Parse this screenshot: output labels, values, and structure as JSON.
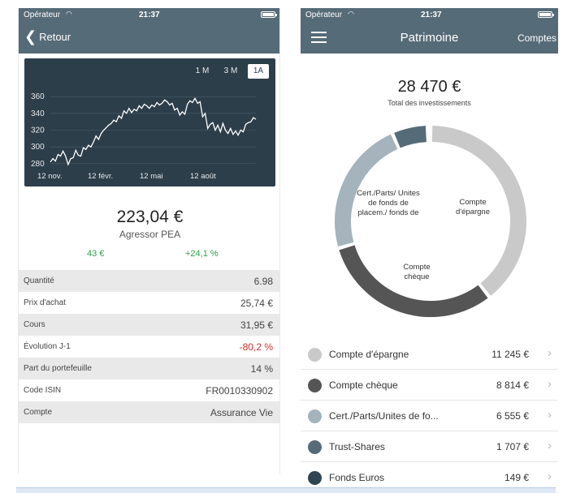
{
  "colors": {
    "navbar": "#566b78",
    "chart_bg": "#2c3e4a",
    "positive": "#2ea14a",
    "negative": "#d0312d"
  },
  "left": {
    "status": {
      "carrier": "Opérateur",
      "time": "21:37"
    },
    "nav": {
      "back_label": "Retour"
    },
    "chart": {
      "ranges": [
        "1 M",
        "3 M",
        "1A"
      ],
      "active_range": "1A",
      "chart_data": {
        "type": "line",
        "title": "",
        "xlabel": "",
        "ylabel": "",
        "y_ticks": [
          "360",
          "340",
          "320",
          "300",
          "280"
        ],
        "x_ticks": [
          "12 nov.",
          "12 févr.",
          "12 mai",
          "12 août"
        ],
        "ylim": [
          275,
          365
        ],
        "grid": true,
        "series": [
          {
            "values": [
              282,
              286,
              283,
              291,
              289,
              295,
              289,
              279,
              286,
              287,
              296,
              290,
              289,
              299,
              297,
              302,
              300,
              306,
              313,
              309,
              316,
              320,
              323,
              326,
              328,
              332,
              330,
              337,
              334,
              343,
              340,
              346,
              341,
              345,
              343,
              349,
              346,
              351,
              349,
              346,
              350,
              348,
              353,
              350,
              352,
              356,
              354,
              350,
              352,
              344,
              346,
              338,
              342,
              339,
              351,
              355,
              353,
              358,
              352,
              354,
              336,
              340,
              322,
              327,
              329,
              320,
              326,
              318,
              328,
              320,
              316,
              322,
              315,
              319,
              314,
              320,
              318,
              327,
              329,
              330,
              335,
              333
            ]
          }
        ]
      }
    },
    "price": "223,04 €",
    "fund_name": "Agressor PEA",
    "gain_amount": "43 €",
    "gain_percent": "+24,1 %",
    "rows": [
      {
        "label": "Quantité",
        "value": "6.98"
      },
      {
        "label": "Prix d'achat",
        "value": "25,74 €"
      },
      {
        "label": "Cours",
        "value": "31,95 €"
      },
      {
        "label": "Évolution J-1",
        "value": "-80,2 %"
      },
      {
        "label": "Part du portefeuille",
        "value": "14 %"
      },
      {
        "label": "Code ISIN",
        "value": "FR0010330902"
      },
      {
        "label": "Compte",
        "value": "Assurance Vie"
      }
    ]
  },
  "right": {
    "status": {
      "carrier": "Opérateur",
      "time": "21:37"
    },
    "nav": {
      "title": "Patrimoine",
      "right_label": "Comptes"
    },
    "total": "28 470 €",
    "total_label": "Total des investissements",
    "donut_labels": {
      "epargne": "Compte d'épargne",
      "cheque": "Compte chèque",
      "cert": "Cert./Parts/ Unites de fonds de placem./ fonds de"
    },
    "legend": [
      {
        "name": "Compte d'épargne",
        "amount": "11 245 €",
        "color": "#c9c9c9"
      },
      {
        "name": "Compte chèque",
        "amount": "8 814 €",
        "color": "#555555"
      },
      {
        "name": "Cert./Parts/Unites de fo...",
        "amount": "6 555 €",
        "color": "#a4b3bc"
      },
      {
        "name": "Trust-Shares",
        "amount": "1 707 €",
        "color": "#566b78"
      },
      {
        "name": "Fonds Euros",
        "amount": "149 €",
        "color": "#2f4552"
      }
    ],
    "chart_data": {
      "type": "pie",
      "title": "",
      "categories": [
        "Compte d'épargne",
        "Compte chèque",
        "Cert./Parts/Unites de fo...",
        "Trust-Shares",
        "Fonds Euros"
      ],
      "values": [
        11245,
        8814,
        6555,
        1707,
        149
      ]
    }
  }
}
